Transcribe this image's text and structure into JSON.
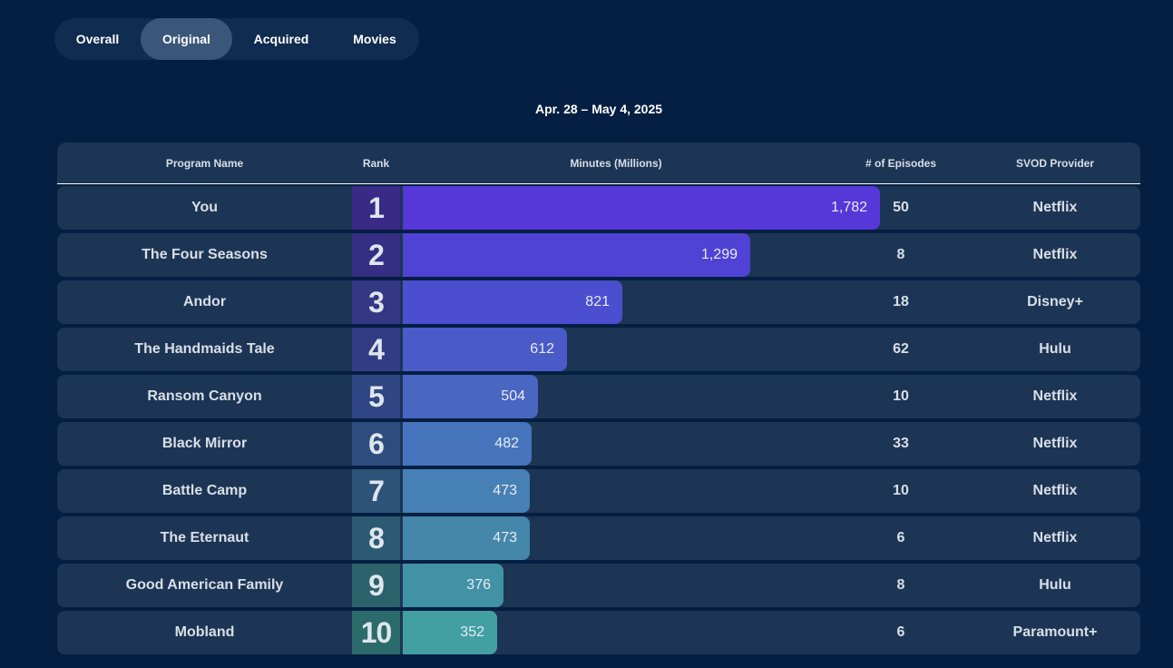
{
  "tabs": [
    {
      "label": "Overall",
      "active": false
    },
    {
      "label": "Original",
      "active": true
    },
    {
      "label": "Acquired",
      "active": false
    },
    {
      "label": "Movies",
      "active": false
    }
  ],
  "date_range": "Apr. 28 – May 4, 2025",
  "headers": {
    "program": "Program Name",
    "rank": "Rank",
    "minutes": "Minutes (Millions)",
    "episodes": "# of Episodes",
    "provider": "SVOD Provider"
  },
  "rows": [
    {
      "name": "You",
      "rank": "1",
      "minutes": 1782,
      "minutes_label": "1,782",
      "episodes": "50",
      "provider": "Netflix"
    },
    {
      "name": "The Four Seasons",
      "rank": "2",
      "minutes": 1299,
      "minutes_label": "1,299",
      "episodes": "8",
      "provider": "Netflix"
    },
    {
      "name": "Andor",
      "rank": "3",
      "minutes": 821,
      "minutes_label": "821",
      "episodes": "18",
      "provider": "Disney+"
    },
    {
      "name": "The Handmaids Tale",
      "rank": "4",
      "minutes": 612,
      "minutes_label": "612",
      "episodes": "62",
      "provider": "Hulu"
    },
    {
      "name": "Ransom Canyon",
      "rank": "5",
      "minutes": 504,
      "minutes_label": "504",
      "episodes": "10",
      "provider": "Netflix"
    },
    {
      "name": "Black Mirror",
      "rank": "6",
      "minutes": 482,
      "minutes_label": "482",
      "episodes": "33",
      "provider": "Netflix"
    },
    {
      "name": "Battle Camp",
      "rank": "7",
      "minutes": 473,
      "minutes_label": "473",
      "episodes": "10",
      "provider": "Netflix"
    },
    {
      "name": "The Eternaut",
      "rank": "8",
      "minutes": 473,
      "minutes_label": "473",
      "episodes": "6",
      "provider": "Netflix"
    },
    {
      "name": "Good American Family",
      "rank": "9",
      "minutes": 376,
      "minutes_label": "376",
      "episodes": "8",
      "provider": "Hulu"
    },
    {
      "name": "Mobland",
      "rank": "10",
      "minutes": 352,
      "minutes_label": "352",
      "episodes": "6",
      "provider": "Paramount+"
    }
  ],
  "colors": {
    "background": "#041f42",
    "row_bg": "#1d3554",
    "bar_colors": [
      "#5637d8",
      "#5042d4",
      "#4b4ecf",
      "#4a5ac9",
      "#4866c2",
      "#4674bc",
      "#4680b4",
      "#4487ab",
      "#4292a6",
      "#42a0a2"
    ],
    "rank_colors": [
      "#392a86",
      "#352e84",
      "#343784",
      "#323c84",
      "#304583",
      "#2f4c7e",
      "#2e5378",
      "#2c5a72",
      "#2c626c",
      "#2c6b6b"
    ]
  }
}
